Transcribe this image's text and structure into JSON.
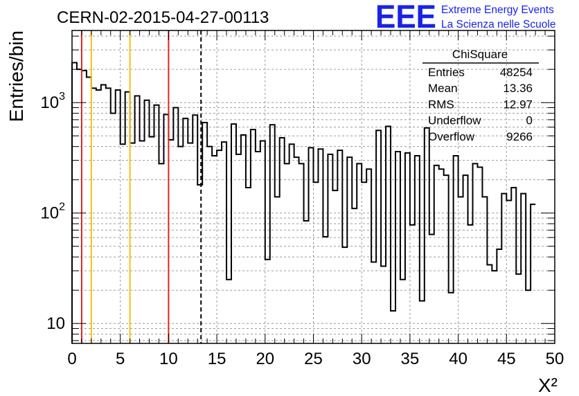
{
  "chart_data": {
    "type": "bar",
    "title": "CERN-02-2015-04-27-00113",
    "xlabel": "X²",
    "ylabel": "Entries/bin",
    "xlim": [
      0,
      50
    ],
    "ylim": [
      6.6,
      4500
    ],
    "yscale": "log",
    "grid": true,
    "bin_width": 0.5,
    "x_ticks": [
      "0",
      "5",
      "10",
      "15",
      "20",
      "25",
      "30",
      "35",
      "40",
      "45",
      "50"
    ],
    "y_tick_labels": [
      {
        "value": 10,
        "base": "10",
        "exp": ""
      },
      {
        "value": 100,
        "base": "10",
        "exp": "2"
      },
      {
        "value": 1000,
        "base": "10",
        "exp": "3"
      }
    ],
    "values": [
      2300,
      2000,
      1950,
      1700,
      1350,
      1300,
      1450,
      1350,
      800,
      1300,
      420,
      1250,
      430,
      1150,
      450,
      1050,
      490,
      950,
      280,
      780,
      460,
      900,
      400,
      720,
      430,
      770,
      180,
      660,
      400,
      330,
      370,
      440,
      25,
      640,
      340,
      510,
      170,
      570,
      360,
      450,
      38,
      630,
      140,
      480,
      280,
      420,
      320,
      280,
      85,
      390,
      190,
      380,
      61,
      340,
      160,
      370,
      49,
      320,
      110,
      280,
      190,
      250,
      36,
      560,
      33,
      610,
      13,
      360,
      25,
      350,
      78,
      330,
      16,
      590,
      64,
      270,
      250,
      220,
      19,
      330,
      140,
      220,
      78,
      280,
      260,
      140,
      34,
      30,
      47,
      150,
      130,
      170,
      28,
      150,
      20,
      120
    ],
    "vertical_lines": [
      {
        "x": 1,
        "color": "#e0241f",
        "style": "solid"
      },
      {
        "x": 2,
        "color": "#f5c012",
        "style": "solid"
      },
      {
        "x": 6,
        "color": "#f5c012",
        "style": "solid"
      },
      {
        "x": 10,
        "color": "#e0241f",
        "style": "solid"
      },
      {
        "x": 13.36,
        "color": "#000000",
        "style": "dashed"
      }
    ],
    "legend": {
      "position": "top-right",
      "title": "ChiSquare",
      "rows": [
        {
          "label": "Entries",
          "value": "48254"
        },
        {
          "label": "Mean",
          "value": "13.36"
        },
        {
          "label": "RMS",
          "value": "12.97"
        },
        {
          "label": "Underflow",
          "value": "0"
        },
        {
          "label": "Overflow",
          "value": "9266"
        }
      ]
    }
  },
  "branding": {
    "logo_letters": "EEE",
    "line1": "Extreme Energy Events",
    "line2": "La Scienza nelle Scuole",
    "color": "#1a22e8"
  }
}
